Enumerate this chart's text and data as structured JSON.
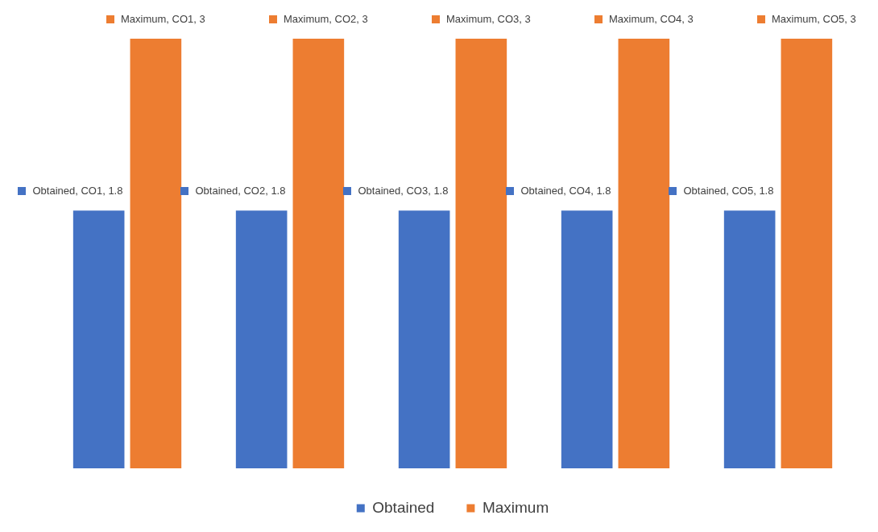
{
  "chart_data": {
    "type": "bar",
    "categories": [
      null,
      null,
      null,
      null,
      null
    ],
    "series": [
      {
        "name": "Obtained",
        "color": "#4472c4",
        "values": [
          1.8,
          1.8,
          1.8,
          1.8,
          1.8
        ],
        "value_labels": [
          "Obtained, CO1, 1.8",
          "Obtained, CO2, 1.8",
          "Obtained, CO3, 1.8",
          "Obtained, CO4, 1.8",
          "Obtained, CO5, 1.8"
        ]
      },
      {
        "name": "Maximum",
        "color": "#ed7d31",
        "values": [
          3,
          3,
          3,
          3,
          3
        ],
        "value_labels": [
          "Maximum, CO1, 3",
          "Maximum, CO2, 3",
          "Maximum, CO3, 3",
          "Maximum, CO4, 3",
          "Maximum, CO5, 3"
        ]
      }
    ],
    "tick_labels": false,
    "grid": false,
    "legend": "bottom"
  }
}
